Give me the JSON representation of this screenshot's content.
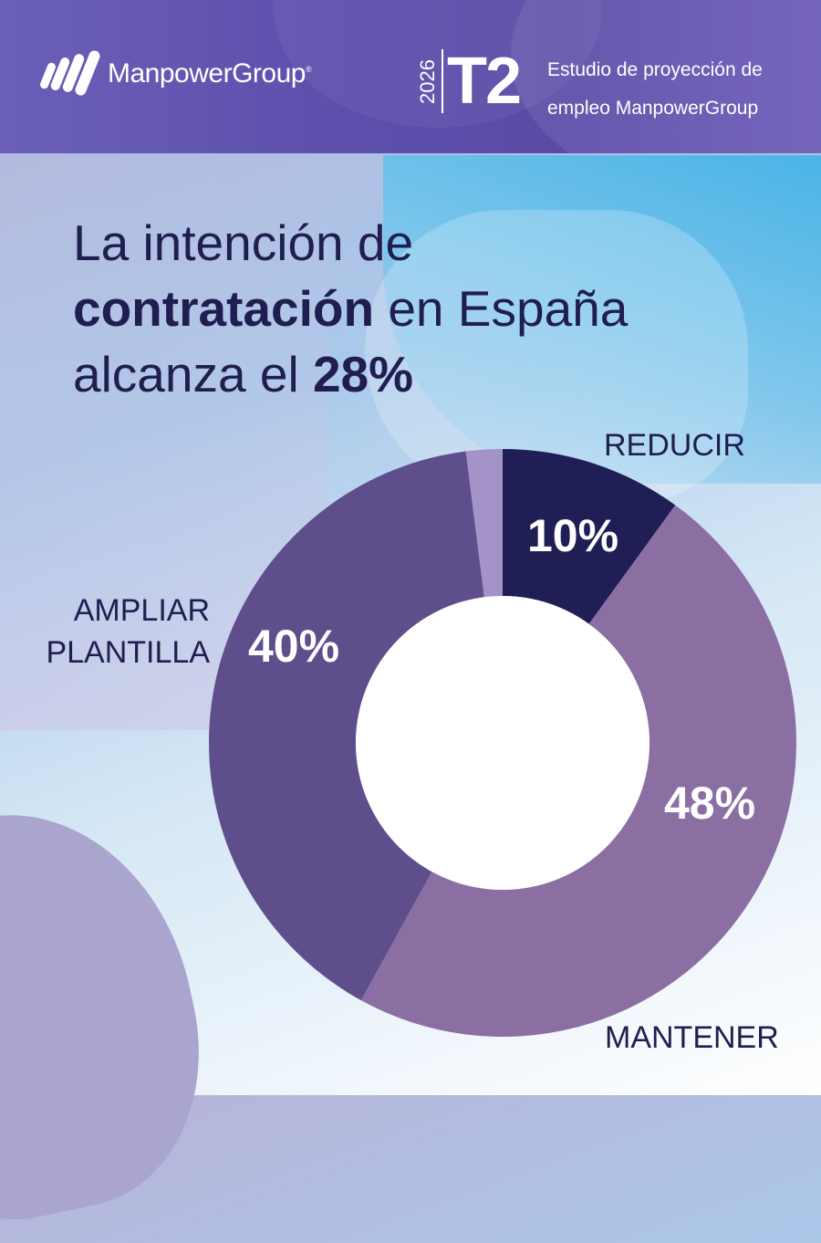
{
  "header": {
    "logo_text": "ManpowerGroup",
    "logo_mark": "ManpowerGroup",
    "year": "2026",
    "quarter": "T2",
    "study_line1": "Estudio de proyección de",
    "study_line2": "empleo ManpowerGroup"
  },
  "headline": {
    "line1": "La intención de",
    "line2_bold": "contratación",
    "line2_rest": " en España",
    "line3_rest": "alcanza el ",
    "line3_bold": "28%"
  },
  "chart_data": {
    "type": "pie",
    "categories": [
      "REDUCIR",
      "MANTENER",
      "AMPLIAR PLANTILLA"
    ],
    "values": [
      10,
      48,
      40
    ],
    "value_labels": [
      "10%",
      "48%",
      "40%"
    ],
    "category_labels": {
      "reducir": "REDUCIR",
      "mantener": "MANTENER",
      "ampliar_line1": "AMPLIAR",
      "ampliar_line2": "PLANTILLA"
    },
    "unlabeled_remainder": 2,
    "colors": [
      "#201f55",
      "#8b6fa3",
      "#5e4f8c",
      "#a393c9"
    ],
    "inner_radius_ratio": 0.5
  }
}
